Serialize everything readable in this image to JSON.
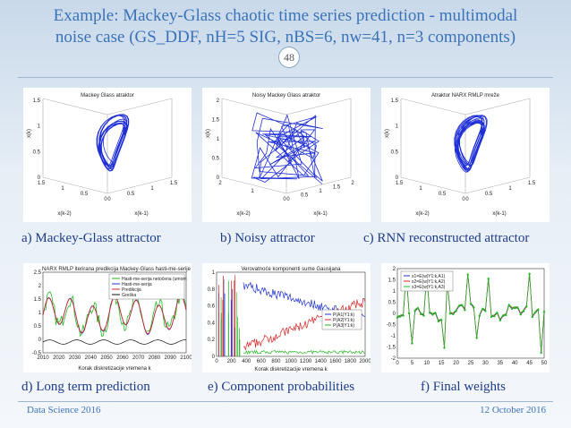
{
  "slide": {
    "title_line1": "Example: Mackey-Glass chaotic time series prediction - multimodal",
    "title_line2": "noise case (GS_DDF, nH=5 SIG, nBS=6, nw=41, n=3 components)",
    "page_number": "48",
    "footer_left": "Data Science 2016",
    "footer_right": "12 October 2016",
    "colors": {
      "title": "#3b73b9",
      "caption": "#1d3c8c",
      "curve": "#1f2fd6"
    }
  },
  "panels": [
    {
      "id": "a",
      "caption": "a) Mackey-Glass attractor",
      "plot_title": "Mackey Glass atraktor",
      "zlabel": "x(k)",
      "xlabel": "x(k-2)",
      "ylabel": "x(k-1)",
      "z_ticks": [
        "0",
        "0.5",
        "1",
        "1.5"
      ],
      "x_ticks": [
        "1.5",
        "1",
        "0.5",
        "0"
      ],
      "y_ticks": [
        "0",
        "0.5",
        "1",
        "1.5"
      ]
    },
    {
      "id": "b",
      "caption": "b) Noisy attractor",
      "plot_title": "Noisy Mackey Glass atraktor",
      "zlabel": "x(k)",
      "xlabel": "x(k-2)",
      "ylabel": "x(k-1)",
      "z_ticks": [
        "0",
        "0.5",
        "1",
        "1.5",
        "2"
      ],
      "x_ticks": [
        "2",
        "1",
        "0"
      ],
      "y_ticks": [
        "0",
        "0.5",
        "1",
        "1.5",
        "2"
      ]
    },
    {
      "id": "c",
      "caption": "c) RNN reconstructed attractor",
      "plot_title": "Atraktor NARX RMLP mreže",
      "zlabel": "x(k)",
      "xlabel": "x(k-2)",
      "ylabel": "x(k-1)",
      "z_ticks": [
        "0",
        "0.5",
        "1",
        "1.5"
      ],
      "x_ticks": [
        "1.5",
        "1",
        "0.5",
        "0"
      ],
      "y_ticks": [
        "0",
        "0.5",
        "1",
        "1.5"
      ]
    },
    {
      "id": "d",
      "caption": "d) Long term prediction",
      "plot_title": "NARX RMLP iterirana predikcija Mackey-Glass hasti-me-serije",
      "xlabel": "Korak diskretizacije vremena k",
      "x_ticks": [
        "2010",
        "2020",
        "2030",
        "2040",
        "2050",
        "2060",
        "2070",
        "2080",
        "2090",
        "2100"
      ],
      "y_ticks": [
        "-0.5",
        "0",
        "0.5",
        "1",
        "1.5",
        "2",
        "2.5"
      ],
      "legend": [
        "Hasti-me-serija netočena (umom",
        "Hasti-me-serija",
        "Predikcija",
        "Greška"
      ]
    },
    {
      "id": "e",
      "caption": "e) Component probabilities",
      "plot_title": "Verovatnoće komponenti sume Gausijana",
      "xlabel": "Korak diskretizacije vremena k",
      "x_ticks": [
        "0",
        "200",
        "400",
        "600",
        "800",
        "1000",
        "1200",
        "1400",
        "1600",
        "1800",
        "2000"
      ],
      "y_ticks": [
        "0",
        "0.2",
        "0.4",
        "0.6",
        "0.8",
        "1"
      ],
      "legend": [
        "P(A1|Y1:k)",
        "P(A2|Y1:k)",
        "P(A3|Y1:k)"
      ]
    },
    {
      "id": "f",
      "caption": "f) Final weights",
      "x_ticks": [
        "0",
        "5",
        "10",
        "15",
        "20",
        "25",
        "30",
        "35",
        "40",
        "45",
        "50"
      ],
      "y_ticks": [
        "-2",
        "-1.5",
        "-1",
        "-0.5",
        "0",
        "0.5",
        "1",
        "1.5",
        "2"
      ],
      "legend": [
        "x1=E(w|Y1:k,A1)",
        "x2=E(w|Y1:k,A2)",
        "x3=E(w|Y1:k,A3)"
      ]
    }
  ]
}
